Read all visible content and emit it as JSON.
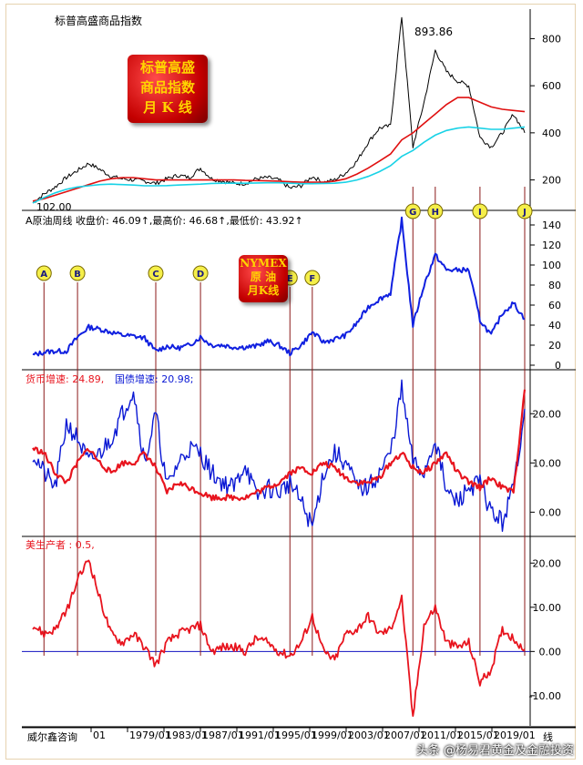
{
  "header": {
    "title": "标普高盛商品指数"
  },
  "footer": {
    "source": "威尔鑫咨询",
    "end_label": "线"
  },
  "watermark": "头条 @杨易君黄金及金融投资",
  "badges": {
    "gsci": [
      "标普高盛",
      "商品指数",
      "月  K 线"
    ],
    "oil": [
      "NYMEX",
      "原 油",
      "月K线"
    ]
  },
  "panels": {
    "gsci": {
      "max_label": "893.86",
      "min_label": "102.00"
    },
    "oil": {
      "caption": "A原油周线  收盘价: 46.09↑,最高价: 46.68↑,最低价: 43.92↑"
    },
    "money": {
      "caption_money": "货币增速: 24.89,",
      "caption_bond": "国债增速: 20.98;"
    },
    "ppi": {
      "caption": "美生产者 : 0.5,"
    }
  },
  "markers": [
    "A",
    "B",
    "C",
    "D",
    "E",
    "F",
    "G",
    "H",
    "I",
    "J"
  ],
  "colors": {
    "money": "#e8141e",
    "bond": "#0a18d4",
    "gsci_ma_long": "#e01010",
    "gsci_ma_short": "#19d2e6",
    "oil": "#1020e0",
    "ppi": "#e8141e",
    "zero_line": "#1010c0",
    "marker_line": "#8b1a1a",
    "badge_text": "#ffd400"
  },
  "chart_data": [
    {
      "type": "line",
      "title": "标普高盛商品指数",
      "x": [
        "1975",
        "1976",
        "1977",
        "1978",
        "1979",
        "1980",
        "1981",
        "1982",
        "1983",
        "1984",
        "1985",
        "1986",
        "1987",
        "1988",
        "1989",
        "1990",
        "1991",
        "1992",
        "1993",
        "1994",
        "1995",
        "1996",
        "1997",
        "1998",
        "1999",
        "2000",
        "2001",
        "2002",
        "2003",
        "2004",
        "2005",
        "2006",
        "2007",
        "2008",
        "2009",
        "2010",
        "2011",
        "2012",
        "2013",
        "2014",
        "2015",
        "2016",
        "2017",
        "2018",
        "2019"
      ],
      "series": [
        {
          "values": [
            102,
            140,
            170,
            210,
            240,
            270,
            245,
            215,
            205,
            200,
            195,
            185,
            205,
            220,
            210,
            250,
            205,
            195,
            185,
            185,
            205,
            210,
            200,
            165,
            175,
            215,
            190,
            200,
            230,
            280,
            360,
            420,
            430,
            893.86,
            340,
            530,
            750,
            660,
            620,
            600,
            380,
            340,
            400,
            480,
            400
          ]
        },
        {
          "values": [
            110,
            120,
            135,
            150,
            165,
            180,
            195,
            205,
            210,
            210,
            205,
            200,
            200,
            200,
            200,
            200,
            200,
            200,
            200,
            198,
            197,
            196,
            195,
            192,
            190,
            190,
            190,
            195,
            205,
            225,
            250,
            280,
            310,
            370,
            400,
            440,
            480,
            520,
            550,
            550,
            530,
            510,
            500,
            495,
            490
          ]
        },
        {
          "values": [
            102,
            125,
            145,
            160,
            170,
            175,
            180,
            182,
            180,
            178,
            175,
            175,
            176,
            178,
            180,
            182,
            185,
            186,
            186,
            186,
            187,
            188,
            188,
            186,
            184,
            184,
            185,
            186,
            190,
            200,
            215,
            235,
            260,
            300,
            325,
            360,
            390,
            410,
            420,
            425,
            420,
            415,
            415,
            420,
            425
          ]
        }
      ],
      "yticks": [
        200,
        400,
        600,
        800
      ],
      "ylim": [
        90,
        910
      ],
      "annotations": [
        "893.86",
        "102.00"
      ]
    },
    {
      "type": "line",
      "title": "A原油周线",
      "x": [
        "1975",
        "1976",
        "1977",
        "1978",
        "1979",
        "1980",
        "1981",
        "1982",
        "1983",
        "1984",
        "1985",
        "1986",
        "1987",
        "1988",
        "1989",
        "1990",
        "1991",
        "1992",
        "1993",
        "1994",
        "1995",
        "1996",
        "1997",
        "1998",
        "1999",
        "2000",
        "2001",
        "2002",
        "2003",
        "2004",
        "2005",
        "2006",
        "2007",
        "2008",
        "2009",
        "2010",
        "2011",
        "2012",
        "2013",
        "2014",
        "2015",
        "2016",
        "2017",
        "2018",
        "2019"
      ],
      "values": [
        10,
        13,
        14,
        14,
        28,
        38,
        36,
        33,
        30,
        29,
        27,
        14,
        19,
        17,
        20,
        28,
        20,
        20,
        18,
        18,
        19,
        24,
        20,
        12,
        20,
        33,
        23,
        26,
        30,
        42,
        58,
        66,
        72,
        145,
        40,
        80,
        110,
        95,
        95,
        95,
        45,
        30,
        52,
        62,
        46.09
      ],
      "yticks": [
        0,
        20,
        40,
        60,
        80,
        100,
        120,
        140
      ],
      "ylim": [
        0,
        150
      ]
    },
    {
      "type": "line",
      "title": "货币增速 / 国债增速",
      "x": [
        "1975",
        "1976",
        "1977",
        "1978",
        "1979",
        "1980",
        "1981",
        "1982",
        "1983",
        "1984",
        "1985",
        "1986",
        "1987",
        "1988",
        "1989",
        "1990",
        "1991",
        "1992",
        "1993",
        "1994",
        "1995",
        "1996",
        "1997",
        "1998",
        "1999",
        "2000",
        "2001",
        "2002",
        "2003",
        "2004",
        "2005",
        "2006",
        "2007",
        "2008",
        "2009",
        "2010",
        "2011",
        "2012",
        "2013",
        "2014",
        "2015",
        "2016",
        "2017",
        "2018",
        "2019"
      ],
      "series": [
        {
          "name": "货币增速",
          "values": [
            13,
            12,
            8,
            6,
            10,
            13,
            10,
            8,
            10,
            10,
            12,
            9,
            4,
            6,
            5,
            4,
            3,
            3,
            3,
            3,
            4,
            5,
            6,
            8,
            9,
            8,
            10,
            9,
            7,
            6,
            6,
            7,
            10,
            12,
            9,
            8,
            10,
            12,
            8,
            6,
            5,
            7,
            5,
            4,
            24.89
          ]
        },
        {
          "name": "国债增速",
          "values": [
            12,
            8,
            5,
            18,
            15,
            10,
            12,
            15,
            20,
            25,
            10,
            20,
            5,
            10,
            13,
            12,
            8,
            6,
            5,
            10,
            3,
            5,
            4,
            6,
            2,
            -3,
            8,
            12,
            10,
            5,
            5,
            8,
            12,
            25,
            10,
            8,
            15,
            4,
            2,
            5,
            6,
            0,
            -2,
            5,
            20.98
          ]
        }
      ],
      "yticks": [
        0,
        10,
        20
      ],
      "ylim": [
        -4,
        28
      ]
    },
    {
      "type": "line",
      "title": "美生产者",
      "x": [
        "1975",
        "1976",
        "1977",
        "1978",
        "1979",
        "1980",
        "1981",
        "1982",
        "1983",
        "1984",
        "1985",
        "1986",
        "1987",
        "1988",
        "1989",
        "1990",
        "1991",
        "1992",
        "1993",
        "1994",
        "1995",
        "1996",
        "1997",
        "1998",
        "1999",
        "2000",
        "2001",
        "2002",
        "2003",
        "2004",
        "2005",
        "2006",
        "2007",
        "2008",
        "2009",
        "2010",
        "2011",
        "2012",
        "2013",
        "2014",
        "2015",
        "2016",
        "2017",
        "2018",
        "2019"
      ],
      "values": [
        6,
        4,
        5,
        9,
        16,
        21,
        12,
        4,
        2,
        4,
        1,
        -3,
        2,
        4,
        5,
        6,
        0,
        1,
        1,
        0,
        3,
        2,
        0,
        -1,
        2,
        8,
        0,
        -2,
        4,
        5,
        8,
        4,
        5,
        12,
        -15,
        6,
        10,
        2,
        1,
        2,
        -7,
        -4,
        5,
        3,
        0.5
      ],
      "yticks": [
        -10,
        0,
        10,
        20
      ],
      "ylim": [
        -16,
        25
      ]
    }
  ],
  "x_axis_labels": [
    "01",
    "1979/01",
    "1983/01",
    "1987/01",
    "1991/01",
    "1995/01",
    "1999/01",
    "2003/01",
    "2007/01",
    "2011/01",
    "2015/01",
    "2019/01"
  ]
}
